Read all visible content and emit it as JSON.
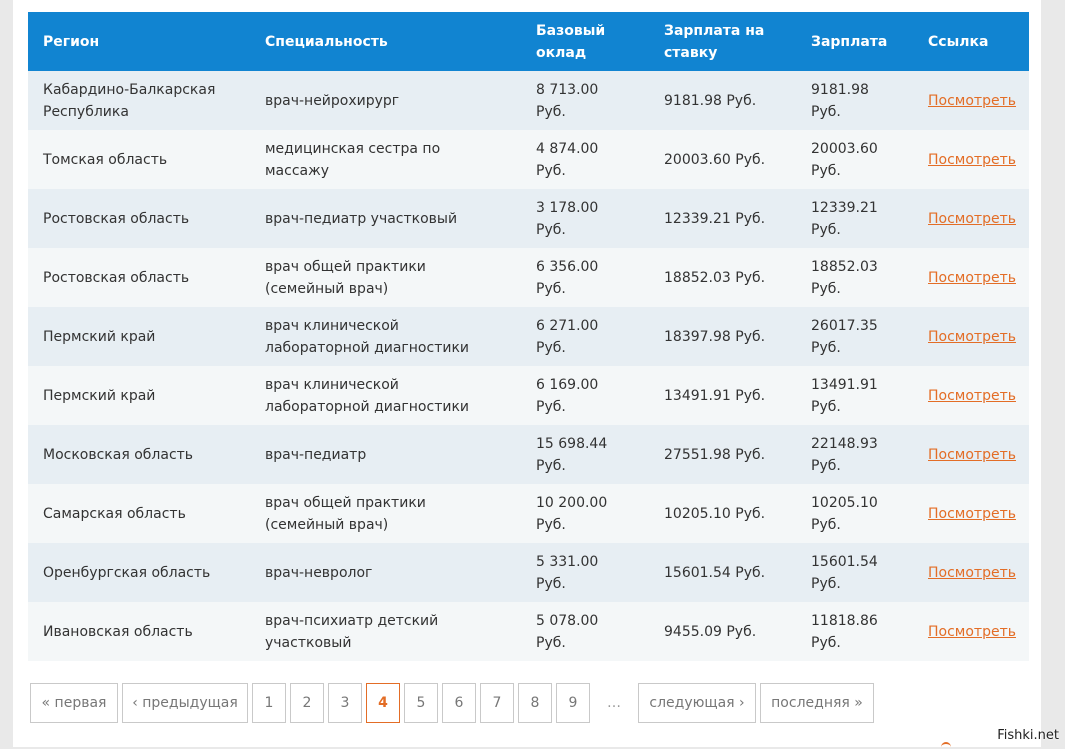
{
  "table": {
    "headers": {
      "region": "Регион",
      "specialty": "Специальность",
      "base_salary": "Базовый оклад",
      "rate_salary": "Зарплата на ставку",
      "salary": "Зарплата",
      "link": "Ссылка"
    },
    "rows": [
      {
        "region": "Кабардино-Балкарская Республика",
        "specialty": "врач-нейрохирург",
        "base": "8 713.00 Руб.",
        "rate": "9181.98 Руб.",
        "salary": "9181.98 Руб.",
        "link": "Посмотреть"
      },
      {
        "region": "Томская область",
        "specialty": "медицинская сестра по массажу",
        "base": "4 874.00 Руб.",
        "rate": "20003.60 Руб.",
        "salary": "20003.60 Руб.",
        "link": "Посмотреть"
      },
      {
        "region": "Ростовская область",
        "specialty": "врач-педиатр участковый",
        "base": "3 178.00 Руб.",
        "rate": "12339.21 Руб.",
        "salary": "12339.21 Руб.",
        "link": "Посмотреть"
      },
      {
        "region": "Ростовская область",
        "specialty": "врач общей практики (семейный врач)",
        "base": "6 356.00 Руб.",
        "rate": "18852.03 Руб.",
        "salary": "18852.03 Руб.",
        "link": "Посмотреть"
      },
      {
        "region": "Пермский край",
        "specialty": "врач клинической лабораторной диагностики",
        "base": "6 271.00 Руб.",
        "rate": "18397.98 Руб.",
        "salary": "26017.35 Руб.",
        "link": "Посмотреть"
      },
      {
        "region": "Пермский край",
        "specialty": "врач клинической лабораторной диагностики",
        "base": "6 169.00 Руб.",
        "rate": "13491.91 Руб.",
        "salary": "13491.91 Руб.",
        "link": "Посмотреть"
      },
      {
        "region": "Московская область",
        "specialty": "врач-педиатр",
        "base": "15 698.44 Руб.",
        "rate": "27551.98 Руб.",
        "salary": "22148.93 Руб.",
        "link": "Посмотреть"
      },
      {
        "region": "Самарская область",
        "specialty": "врач общей практики (семейный врач)",
        "base": "10 200.00 Руб.",
        "rate": "10205.10 Руб.",
        "salary": "10205.10 Руб.",
        "link": "Посмотреть"
      },
      {
        "region": "Оренбургская область",
        "specialty": "врач-невролог",
        "base": "5 331.00 Руб.",
        "rate": "15601.54 Руб.",
        "salary": "15601.54 Руб.",
        "link": "Посмотреть"
      },
      {
        "region": "Ивановская область",
        "specialty": "врач-психиатр детский участковый",
        "base": "5 078.00 Руб.",
        "rate": "9455.09 Руб.",
        "salary": "11818.86 Руб.",
        "link": "Посмотреть"
      }
    ]
  },
  "pager": {
    "first": "« первая",
    "prev": "‹ предыдущая",
    "pages": [
      "1",
      "2",
      "3",
      "4",
      "5",
      "6",
      "7",
      "8",
      "9"
    ],
    "current": "4",
    "ellipsis": "…",
    "next": "следующая ›",
    "last": "последняя »"
  },
  "watermark": "Fishki.net"
}
